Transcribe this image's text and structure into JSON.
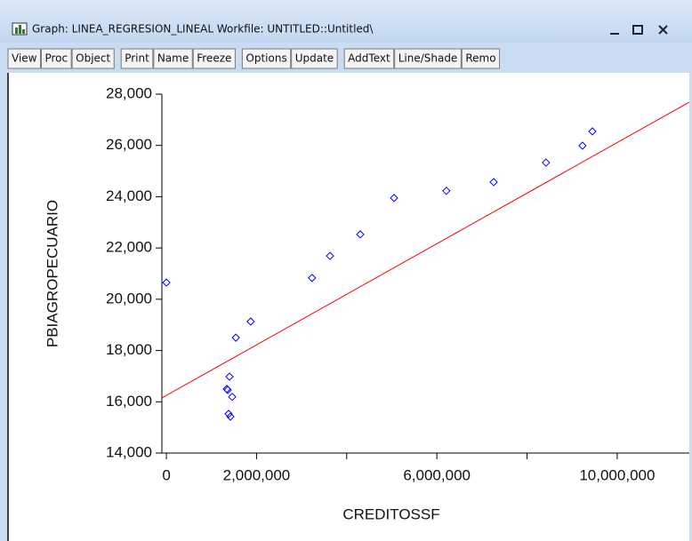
{
  "window": {
    "title": "Graph: LINEA_REGRESION_LINEAL   Workfile: UNTITLED::Untitled\\"
  },
  "toolbar": [
    [
      "View",
      "Proc",
      "Object"
    ],
    [
      "Print",
      "Name",
      "Freeze"
    ],
    [
      "Options",
      "Update"
    ],
    [
      "AddText",
      "Line/Shade",
      "Remo"
    ]
  ],
  "chart_data": {
    "type": "scatter",
    "xlabel": "CREDITOSSF",
    "ylabel": "PBIAGROPECUARIO",
    "series": [
      {
        "name": "PBIAGROPECUARIO",
        "color": "#0000ff",
        "x": [
          0,
          1540000,
          1870000,
          3230000,
          3630000,
          4300000,
          5050000,
          6210000,
          7260000,
          8420000,
          9230000,
          9450000,
          1400000,
          1360000,
          1340000,
          1460000,
          1380000,
          1420000
        ],
        "values": [
          20650,
          18500,
          19130,
          20830,
          21690,
          22530,
          23950,
          24230,
          24570,
          25330,
          25990,
          26550,
          16980,
          16460,
          16500,
          16190,
          15530,
          15420
        ]
      }
    ],
    "fit_line": {
      "color": "#ff0000",
      "x": [
        -100000,
        11600000
      ],
      "values": [
        16150,
        27690
      ]
    },
    "xlim": [
      -100000,
      11600000
    ],
    "ylim": [
      14000,
      28000
    ],
    "xticks": [
      0,
      {
        "value": 2000000,
        "label": "2,000,000"
      },
      {
        "value": 6000000,
        "label": "6,000,000"
      },
      {
        "value": 10000000,
        "label": "10,000,000"
      }
    ],
    "xminor_ticks": [
      4000000,
      8000000
    ],
    "yticks": [
      {
        "value": 14000,
        "label": "14,000"
      },
      {
        "value": 16000,
        "label": "16,000"
      },
      {
        "value": 18000,
        "label": "18,000"
      },
      {
        "value": 20000,
        "label": "20,000"
      },
      {
        "value": 22000,
        "label": "22,000"
      },
      {
        "value": 24000,
        "label": "24,000"
      },
      {
        "value": 26000,
        "label": "26,000"
      },
      {
        "value": 28000,
        "label": "28,000"
      }
    ]
  }
}
